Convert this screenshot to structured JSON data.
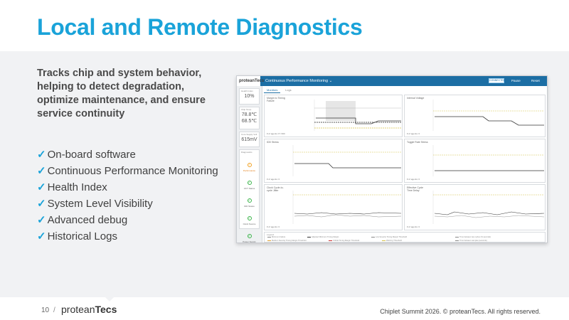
{
  "slide": {
    "title": "Local and Remote Diagnostics",
    "lead": "Tracks chip and system behavior, helping to detect degradation, optimize maintenance, and ensure service continuity",
    "bullets": [
      "On-board software",
      "Continuous Performance Monitoring",
      "Health Index",
      "System Level Visibility",
      "Advanced debug",
      "Historical Logs"
    ],
    "check_glyph": "✓",
    "accent_color": "#1aa3d9"
  },
  "app": {
    "logo": "proteanTecs",
    "view_title": "Continuous Performance Monitoring ⌄",
    "connected_label": "CONNECTED",
    "pause_label": "Pause",
    "reset_label": "Reset",
    "sidebar": {
      "cards": [
        {
          "label": "Health Index",
          "value": "10%"
        },
        {
          "label": "Chip Temp",
          "value": "78.8℃"
        },
        {
          "label": "",
          "value": "68.5℃"
        },
        {
          "label": "Core Supply Volt",
          "value": "615mV"
        }
      ],
      "modules_label": "Diagnostics",
      "modules": [
        {
          "label": "Performance",
          "icon": "warning-icon",
          "status": "warn"
        },
        {
          "label": "UCT Status",
          "icon": "check-circle-icon",
          "status": "ok"
        },
        {
          "label": "IDD Status",
          "icon": "check-circle-icon",
          "status": "ok"
        },
        {
          "label": "Clock Source",
          "icon": "check-circle-icon",
          "status": "ok"
        },
        {
          "label": "Power Supply",
          "icon": "check-circle-icon",
          "status": "ok"
        }
      ]
    },
    "tabs": [
      "Monitors",
      "Logs"
    ],
    "panels": {
      "margin": {
        "title": "Margin to Timing Failure",
        "agents": "# of agents: 8 / 600"
      },
      "internal_voltage": {
        "title": "Internal Voltage",
        "agents": "# of agents: 0"
      },
      "idd_stress": {
        "title": "IDD Stress",
        "agents": "# of agents: 0"
      },
      "toggle_rate": {
        "title": "Toggle Rate Stress",
        "agents": "# of agents: 0"
      },
      "clock_cycle": {
        "title": "Clock Cycle-to-cycle Jitter",
        "agents": "# of agents: 0"
      },
      "effective_cycle": {
        "title": "Effective Cycle Time Delay",
        "agents": "# of agents: 0"
      }
    },
    "legend": {
      "title": "Legend",
      "items": [
        "Minimum Failure",
        "Adjusted Minimum Timing Margin",
        "Low Severity Timing Margin Threshold",
        "Medium Severity Timing Margin Threshold",
        "Critical Timing Margin Threshold",
        "Warning Threshold",
        "Time between two cycles (% seconds)",
        "Time between samples (seconds)"
      ]
    }
  },
  "footer": {
    "page_number": "10",
    "slash": "/",
    "logo_light": "protean",
    "logo_bold": "Tecs",
    "copyright": "Chiplet Summit 2026. © proteanTecs. All rights reserved."
  }
}
